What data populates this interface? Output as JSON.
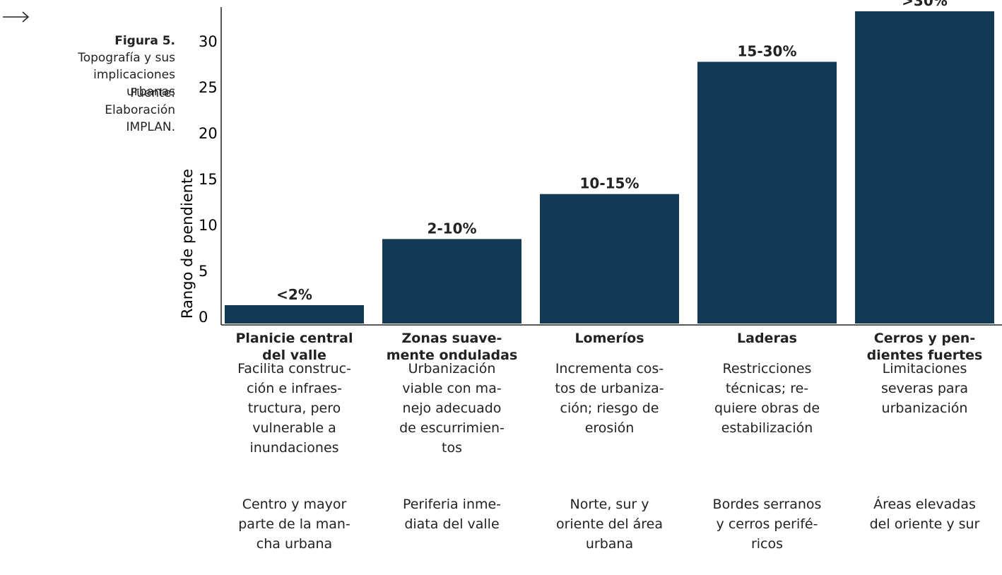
{
  "caption_label": "Figura 5.",
  "caption": "Topografía y sus implicaciones urbanas",
  "source": "Fuente: Elaboración IMPLAN.",
  "chart_data": {
    "type": "bar",
    "y_axis_label": "Rango de pendiente",
    "categories": [
      "Planicie central\ndel valle",
      "Zonas suave-\nmente onduladas",
      "Lomeríos",
      "Laderas",
      "Cerros y pen-\ndientes fuertes"
    ],
    "values": [
      2,
      9.2,
      14.1,
      28.5,
      34
    ],
    "range_labels": [
      "<2%",
      "2-10%",
      "10-15%",
      "15-30%",
      ">30%"
    ],
    "descriptions": [
      "Facilita construc-\nción e infraes-\ntructura, pero\nvulnerable a\ninundaciones",
      "Urbanización\nviable con ma-\nnejo adecuado\nde escurrimien-\ntos",
      "Incrementa cos-\ntos de urbaniza-\nción; riesgo de\nerosión",
      "Restricciones\ntécnicas; re-\nquiere obras de\nestabilización",
      "Limitaciones\nseveras para\nurbanización"
    ],
    "locations": [
      "Centro y mayor\nparte de la man-\ncha urbana",
      "Periferia inme-\ndiata del valle",
      "Norte, sur y\noriente del área\nurbana",
      "Bordes serranos\ny cerros perifé-\nricos",
      "Áreas elevadas\ndel oriente y sur"
    ],
    "color": "#133a54",
    "ylim": [
      0,
      35
    ],
    "yticks": [
      0,
      5,
      10,
      15,
      20,
      25,
      30
    ]
  }
}
